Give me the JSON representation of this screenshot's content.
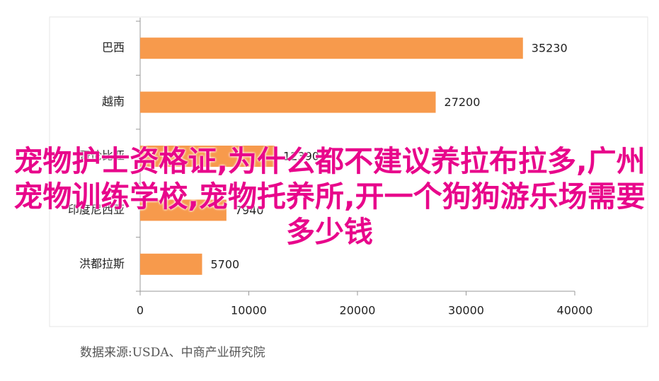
{
  "chart_data": {
    "type": "bar",
    "orientation": "horizontal",
    "categories": [
      "巴西",
      "越南",
      "哥伦比亚",
      "印度尼西亚",
      "洪都拉斯"
    ],
    "values": [
      35230,
      27200,
      12390,
      7940,
      5700
    ],
    "color": "#f79a4c",
    "xlim": [
      0,
      40000
    ],
    "xticks": [
      0,
      10000,
      20000,
      30000,
      40000
    ],
    "source": "数据来源:USDA、中商产业研究院",
    "overlay_text": "宠物护士资格证,为什么都不建议养拉布拉多,广州宠物训练学校,宠物托养所,开一个狗狗游乐场需要多少钱"
  }
}
